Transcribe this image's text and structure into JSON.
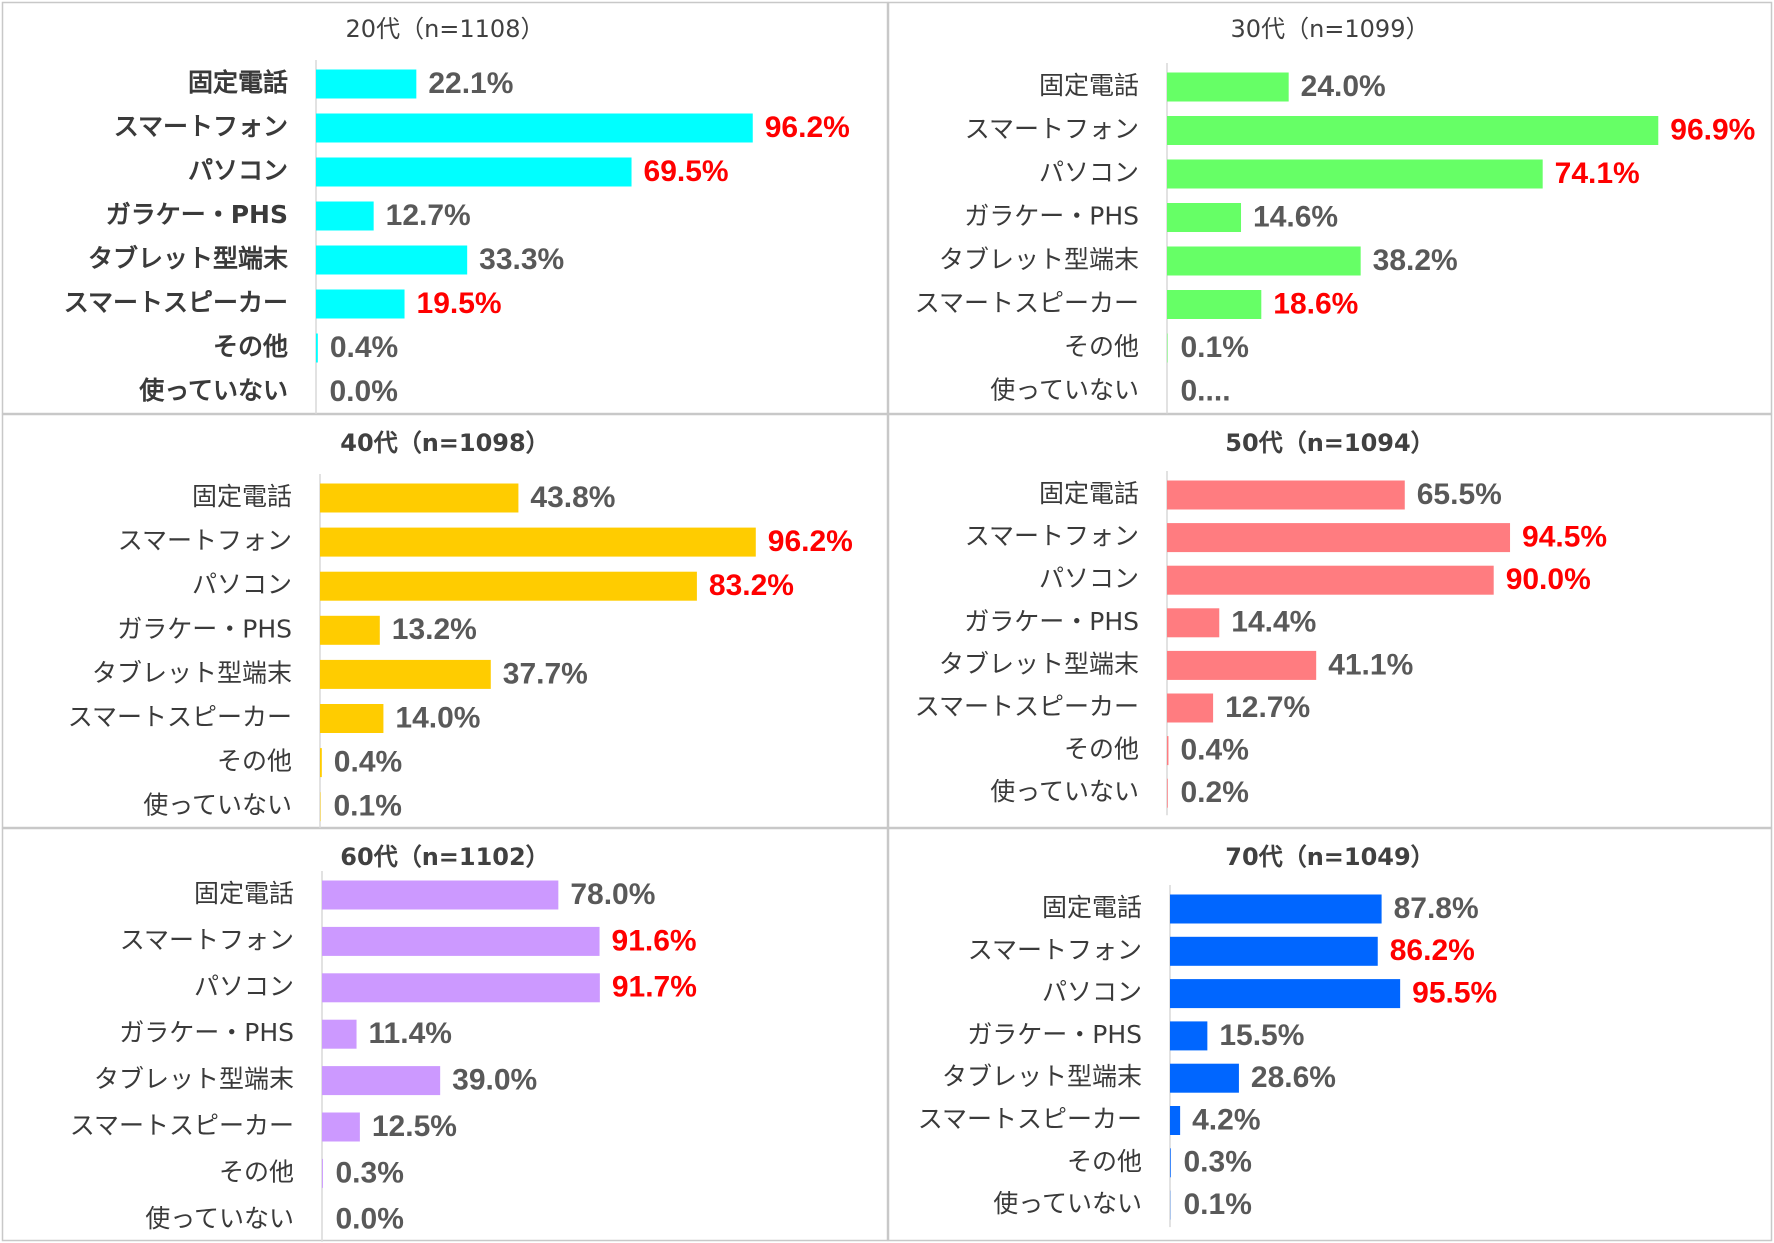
{
  "colors": {
    "border": "#c8c8c8",
    "axis": "#d9d9d9",
    "label": "#3a3a3a",
    "value_normal": "#595959",
    "value_highlight": "#ff0000"
  },
  "chart_data": [
    {
      "type": "bar",
      "orientation": "horizontal",
      "title": "20代（n=1108）",
      "color": "#00ffff",
      "categories": [
        "固定電話",
        "スマートフォン",
        "パソコン",
        "ガラケー・PHS",
        "タブレット型端末",
        "スマートスピーカー",
        "その他",
        "使っていない"
      ],
      "values": [
        22.1,
        96.2,
        69.5,
        12.7,
        33.3,
        19.5,
        0.4,
        0.0
      ],
      "labels": [
        "22.1%",
        "96.2%",
        "69.5%",
        "12.7%",
        "33.3%",
        "19.5%",
        "0.4%",
        "0.0%"
      ],
      "highlight": [
        false,
        true,
        true,
        false,
        false,
        true,
        false,
        false
      ],
      "xlim": [
        0,
        100
      ]
    },
    {
      "type": "bar",
      "orientation": "horizontal",
      "title": "30代（n=1099）",
      "color": "#66ff66",
      "categories": [
        "固定電話",
        "スマートフォン",
        "パソコン",
        "ガラケー・PHS",
        "タブレット型端末",
        "スマートスピーカー",
        "その他",
        "使っていない"
      ],
      "values": [
        24.0,
        96.9,
        74.1,
        14.6,
        38.2,
        18.6,
        0.1,
        0.0
      ],
      "labels": [
        "24.0%",
        "96.9%",
        "74.1%",
        "14.6%",
        "38.2%",
        "18.6%",
        "0.1%",
        "0...."
      ],
      "highlight": [
        false,
        true,
        true,
        false,
        false,
        true,
        false,
        false
      ],
      "xlim": [
        0,
        100
      ]
    },
    {
      "type": "bar",
      "orientation": "horizontal",
      "title": "40代（n=1098）",
      "color": "#ffcc00",
      "categories": [
        "固定電話",
        "スマートフォン",
        "パソコン",
        "ガラケー・PHS",
        "タブレット型端末",
        "スマートスピーカー",
        "その他",
        "使っていない"
      ],
      "values": [
        43.8,
        96.2,
        83.2,
        13.2,
        37.7,
        14.0,
        0.4,
        0.1
      ],
      "labels": [
        "43.8%",
        "96.2%",
        "83.2%",
        "13.2%",
        "37.7%",
        "14.0%",
        "0.4%",
        "0.1%"
      ],
      "highlight": [
        false,
        true,
        true,
        false,
        false,
        false,
        false,
        false
      ],
      "xlim": [
        0,
        100
      ]
    },
    {
      "type": "bar",
      "orientation": "horizontal",
      "title": "50代（n=1094）",
      "color": "#ff7c80",
      "categories": [
        "固定電話",
        "スマートフォン",
        "パソコン",
        "ガラケー・PHS",
        "タブレット型端末",
        "スマートスピーカー",
        "その他",
        "使っていない"
      ],
      "values": [
        65.5,
        94.5,
        90.0,
        14.4,
        41.1,
        12.7,
        0.4,
        0.2
      ],
      "labels": [
        "65.5%",
        "94.5%",
        "90.0%",
        "14.4%",
        "41.1%",
        "12.7%",
        "0.4%",
        "0.2%"
      ],
      "highlight": [
        false,
        true,
        true,
        false,
        false,
        false,
        false,
        false
      ],
      "xlim": [
        0,
        100
      ]
    },
    {
      "type": "bar",
      "orientation": "horizontal",
      "title": "60代（n=1102）",
      "color": "#cc99ff",
      "categories": [
        "固定電話",
        "スマートフォン",
        "パソコン",
        "ガラケー・PHS",
        "タブレット型端末",
        "スマートスピーカー",
        "その他",
        "使っていない"
      ],
      "values": [
        78.0,
        91.6,
        91.7,
        11.4,
        39.0,
        12.5,
        0.3,
        0.0
      ],
      "labels": [
        "78.0%",
        "91.6%",
        "91.7%",
        "11.4%",
        "39.0%",
        "12.5%",
        "0.3%",
        "0.0%"
      ],
      "highlight": [
        false,
        true,
        true,
        false,
        false,
        false,
        false,
        false
      ],
      "xlim": [
        0,
        100
      ]
    },
    {
      "type": "bar",
      "orientation": "horizontal",
      "title": "70代（n=1049）",
      "color": "#0066ff",
      "categories": [
        "固定電話",
        "スマートフォン",
        "パソコン",
        "ガラケー・PHS",
        "タブレット型端末",
        "スマートスピーカー",
        "その他",
        "使っていない"
      ],
      "values": [
        87.8,
        86.2,
        95.5,
        15.5,
        28.6,
        4.2,
        0.3,
        0.1
      ],
      "labels": [
        "87.8%",
        "86.2%",
        "95.5%",
        "15.5%",
        "28.6%",
        "4.2%",
        "0.3%",
        "0.1%"
      ],
      "highlight": [
        false,
        true,
        true,
        false,
        false,
        false,
        false,
        false
      ],
      "xlim": [
        0,
        100
      ]
    }
  ]
}
